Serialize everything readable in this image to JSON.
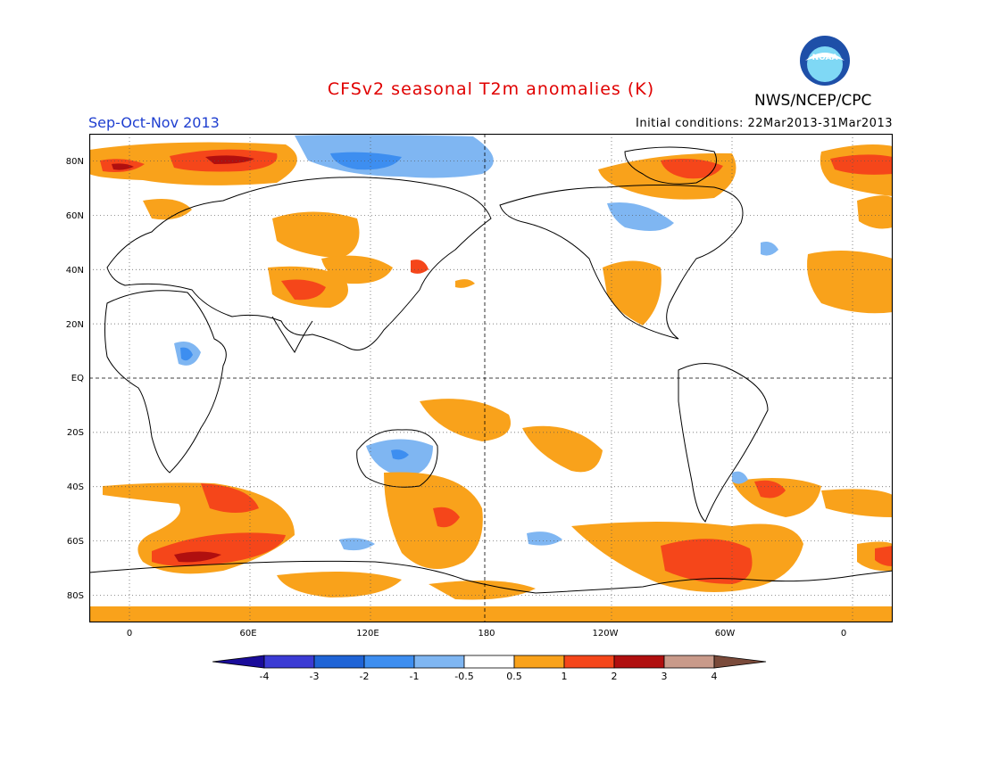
{
  "title": "CFSv2 seasonal T2m anomalies (K)",
  "season": "Sep-Oct-Nov 2013",
  "initial_conditions": "Initial conditions: 22Mar2013-31Mar2013",
  "agency": "NWS/NCEP/CPC",
  "logo": {
    "text": "NOAA",
    "colors": {
      "outer": "#1e4fa8",
      "inner": "#7fd8f5"
    }
  },
  "map": {
    "projection": "equirectangular",
    "lon_range": [
      -20,
      380
    ],
    "lat_range": [
      -90,
      90
    ],
    "grid": "dotted",
    "lat_labels": [
      "80N",
      "60N",
      "40N",
      "20N",
      "EQ",
      "20S",
      "40S",
      "60S",
      "80S"
    ],
    "lon_labels": [
      "0",
      "60E",
      "120E",
      "180",
      "120W",
      "60W",
      "0"
    ]
  },
  "colorbar": {
    "labels": [
      "-4",
      "-3",
      "-2",
      "-1",
      "-0.5",
      "0.5",
      "1",
      "2",
      "3",
      "4"
    ],
    "colors": [
      "#1a0c9a",
      "#3b3bd4",
      "#1f64d6",
      "#3d8ef0",
      "#7fb6f2",
      "#ffffff",
      "#f9a21b",
      "#f5461a",
      "#b00f0f",
      "#c99a8a",
      "#7a4a3a"
    ]
  }
}
